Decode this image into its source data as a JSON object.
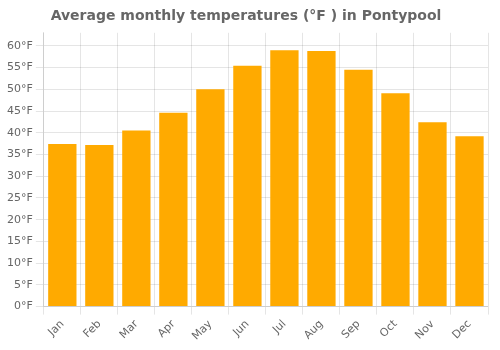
{
  "chart_data": {
    "type": "bar",
    "title": "Average monthly temperatures (°F ) in Pontypool",
    "categories": [
      "Jan",
      "Feb",
      "Mar",
      "Apr",
      "May",
      "Jun",
      "Jul",
      "Aug",
      "Sep",
      "Oct",
      "Nov",
      "Dec"
    ],
    "values": [
      37.4,
      37.2,
      40.5,
      44.6,
      50.0,
      55.4,
      59.0,
      58.8,
      54.5,
      49.1,
      42.4,
      39.2
    ],
    "color": "#FFAA00",
    "ylim": [
      0,
      63
    ],
    "yticks": [
      {
        "value": 0,
        "label": "0°F"
      },
      {
        "value": 5,
        "label": "5°F"
      },
      {
        "value": 10,
        "label": "10°F"
      },
      {
        "value": 15,
        "label": "15°F"
      },
      {
        "value": 20,
        "label": "20°F"
      },
      {
        "value": 25,
        "label": "25°F"
      },
      {
        "value": 30,
        "label": "30°F"
      },
      {
        "value": 35,
        "label": "35°F"
      },
      {
        "value": 40,
        "label": "40°F"
      },
      {
        "value": 45,
        "label": "45°F"
      },
      {
        "value": 50,
        "label": "50°F"
      },
      {
        "value": 55,
        "label": "55°F"
      },
      {
        "value": 60,
        "label": "60°F"
      }
    ],
    "grid": true
  }
}
